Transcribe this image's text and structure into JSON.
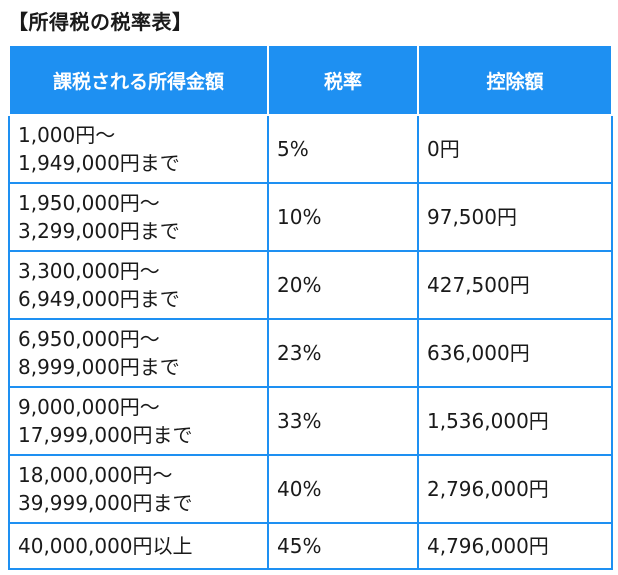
{
  "title": "【所得税の税率表】",
  "headers": {
    "income": "課税される所得金額",
    "rate": "税率",
    "deduction": "控除額"
  },
  "rows": [
    {
      "from": "1,000円～",
      "to": "1,949,000円まで",
      "rate": "5%",
      "deduction": "0円"
    },
    {
      "from": "1,950,000円～",
      "to": "3,299,000円まで",
      "rate": "10%",
      "deduction": "97,500円"
    },
    {
      "from": "3,300,000円～",
      "to": "6,949,000円まで",
      "rate": "20%",
      "deduction": "427,500円"
    },
    {
      "from": "6,950,000円～",
      "to": "8,999,000円まで",
      "rate": "23%",
      "deduction": "636,000円"
    },
    {
      "from": "9,000,000円～",
      "to": "17,999,000円まで",
      "rate": "33%",
      "deduction": "1,536,000円"
    },
    {
      "from": "18,000,000円～",
      "to": "39,999,000円まで",
      "rate": "40%",
      "deduction": "2,796,000円"
    },
    {
      "from": "40,000,000円以上",
      "to": "",
      "rate": "45%",
      "deduction": "4,796,000円"
    }
  ],
  "colors": {
    "header_bg": "#1e90f2",
    "border": "#1e90f2",
    "header_text": "#ffffff"
  }
}
